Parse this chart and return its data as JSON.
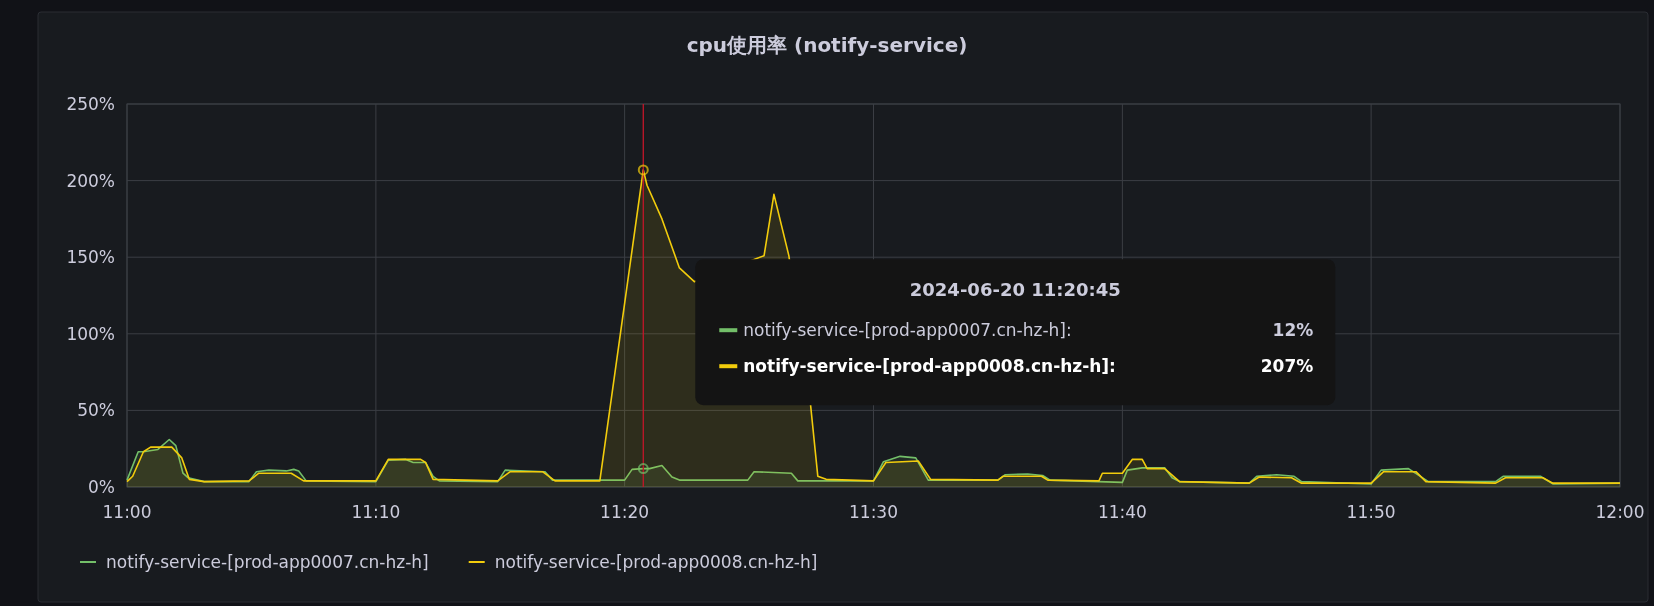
{
  "chart_data": {
    "type": "area",
    "title": "cpu使用率 (notify-service)",
    "xlim": [
      11,
      12
    ],
    "xticks": [
      {
        "value": 11,
        "label": "11:00"
      },
      {
        "value": 11.1667,
        "label": "11:10"
      },
      {
        "value": 11.3333,
        "label": "11:20"
      },
      {
        "value": 11.5,
        "label": "11:30"
      },
      {
        "value": 11.6667,
        "label": "11:40"
      },
      {
        "value": 11.8333,
        "label": "11:50"
      },
      {
        "value": 12,
        "label": "12:00"
      }
    ],
    "ylim": [
      0,
      250
    ],
    "yticks": [
      {
        "value": 0,
        "label": "0%"
      },
      {
        "value": 50,
        "label": "50%"
      },
      {
        "value": 100,
        "label": "100%"
      },
      {
        "value": 150,
        "label": "150%"
      },
      {
        "value": 200,
        "label": "200%"
      },
      {
        "value": 250,
        "label": "250%"
      }
    ],
    "grid": true,
    "legend": "bottom",
    "line_style": "solid",
    "marker": "none",
    "series": [
      {
        "name": "notify-service-[prod-app0007.cn-hz-h]",
        "color": "#73bf69",
        "x": [
          11.0,
          11.0075,
          11.011,
          11.0207,
          11.0283,
          11.0327,
          11.0375,
          11.041,
          11.0517,
          11.0817,
          11.0867,
          11.095,
          11.1067,
          11.1117,
          11.115,
          11.12,
          11.1667,
          11.175,
          11.1867,
          11.1917,
          11.2,
          11.205,
          11.2092,
          11.2483,
          11.2533,
          11.28,
          11.285,
          11.3333,
          11.3383,
          11.3458,
          11.35,
          11.3583,
          11.365,
          11.37,
          11.4158,
          11.42,
          11.445,
          11.4493,
          11.5,
          11.5067,
          11.5178,
          11.5283,
          11.5367,
          11.5833,
          11.5883,
          11.6033,
          11.6133,
          11.6183,
          11.6667,
          11.67,
          11.68,
          11.695,
          11.7,
          11.705,
          11.7517,
          11.7567,
          11.77,
          11.7817,
          11.7867,
          11.8333,
          11.84,
          11.8583,
          11.8717,
          11.9167,
          11.9217,
          11.9467,
          11.955,
          12
        ],
        "values": [
          4.5,
          23,
          23,
          24.5,
          31,
          27,
          9,
          6,
          3.5,
          3.5,
          10,
          11,
          10.5,
          11.5,
          10.5,
          4,
          3.5,
          17.5,
          18,
          16,
          16,
          7,
          4,
          3.5,
          11,
          10,
          4.5,
          4.5,
          11.5,
          12,
          12,
          14,
          6.5,
          4.5,
          4.5,
          10,
          9,
          4,
          4,
          16.5,
          20,
          19,
          4.5,
          4.5,
          8,
          8.5,
          7.5,
          4.5,
          3,
          11,
          12.5,
          12.5,
          6,
          3.5,
          2.5,
          7,
          8,
          7,
          3.5,
          2,
          11,
          12,
          3.5,
          3.5,
          7,
          7,
          2,
          2.5
        ]
      },
      {
        "name": "notify-service-[prod-app0008.cn-hz-h]",
        "color": "#f2cc0c",
        "x": [
          11.0,
          11.0038,
          11.011,
          11.0158,
          11.03,
          11.0367,
          11.0417,
          11.0517,
          11.0817,
          11.0883,
          11.11,
          11.1183,
          11.1667,
          11.175,
          11.1967,
          11.2,
          11.205,
          11.2483,
          11.2567,
          11.2783,
          11.2867,
          11.3167,
          11.3458,
          11.3483,
          11.3583,
          11.37,
          11.38,
          11.4267,
          11.4333,
          11.4433,
          11.4578,
          11.4627,
          11.4683,
          11.5,
          11.5083,
          11.53,
          11.5383,
          11.5833,
          11.5867,
          11.6125,
          11.6167,
          11.651,
          11.6533,
          11.6667,
          11.6733,
          11.68,
          11.6833,
          11.695,
          11.705,
          11.7517,
          11.7583,
          11.78,
          11.7867,
          11.8333,
          11.8417,
          11.8633,
          11.87,
          11.9167,
          11.9233,
          11.9483,
          11.955,
          12
        ],
        "values": [
          3.5,
          7,
          23,
          26,
          26,
          19,
          5,
          3.5,
          4,
          9,
          9,
          4,
          4,
          18,
          18,
          16,
          5,
          4,
          10,
          10,
          4,
          4,
          207,
          197,
          175,
          143,
          134,
          151,
          191,
          151,
          54,
          7,
          5,
          4,
          16,
          17,
          5,
          4.5,
          7,
          7,
          4.5,
          4,
          9,
          9,
          18,
          18,
          12,
          12,
          3.5,
          2.5,
          6.5,
          6,
          2.5,
          2.5,
          10,
          10,
          3.5,
          2.5,
          6,
          6,
          2.5,
          2.5
        ]
      }
    ],
    "ref_lines": [
      {
        "axis": "x",
        "value": 11.3458,
        "color": "#c4162a"
      }
    ],
    "annotations": [
      "2024-06-20 11:20:45",
      "notify-service-[prod-app0007.cn-hz-h]:",
      "12%",
      "notify-service-[prod-app0008.cn-hz-h]:",
      "207%"
    ]
  }
}
